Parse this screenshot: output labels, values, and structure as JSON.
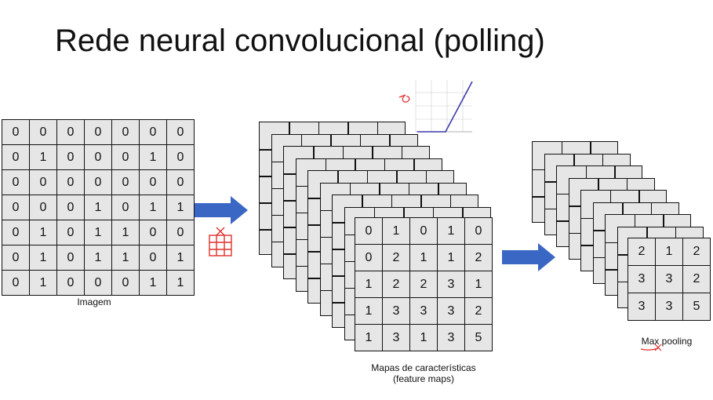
{
  "title": "Rede neural convolucional (polling)",
  "image": {
    "caption": "Imagem",
    "rows": [
      [
        "0",
        "0",
        "0",
        "0",
        "0",
        "0",
        "0"
      ],
      [
        "0",
        "1",
        "0",
        "0",
        "0",
        "1",
        "0"
      ],
      [
        "0",
        "0",
        "0",
        "0",
        "0",
        "0",
        "0"
      ],
      [
        "0",
        "0",
        "0",
        "1",
        "0",
        "1",
        "1"
      ],
      [
        "0",
        "1",
        "0",
        "1",
        "1",
        "0",
        "0"
      ],
      [
        "0",
        "1",
        "0",
        "1",
        "1",
        "0",
        "1"
      ],
      [
        "0",
        "1",
        "0",
        "0",
        "0",
        "1",
        "1"
      ]
    ]
  },
  "feature_maps": {
    "caption_line1": "Mapas de características",
    "caption_line2": "(feature maps)",
    "rows": [
      [
        "0",
        "1",
        "0",
        "1",
        "0"
      ],
      [
        "0",
        "2",
        "1",
        "1",
        "2"
      ],
      [
        "1",
        "2",
        "2",
        "3",
        "1"
      ],
      [
        "1",
        "3",
        "3",
        "3",
        "2"
      ],
      [
        "1",
        "3",
        "1",
        "3",
        "5"
      ]
    ]
  },
  "max_pooling": {
    "caption": "Max pooling",
    "rows": [
      [
        "2",
        "1",
        "2"
      ],
      [
        "3",
        "3",
        "2"
      ],
      [
        "3",
        "3",
        "5"
      ]
    ]
  },
  "colors": {
    "arrow": "#3a67c4",
    "ink": "#e0302a",
    "relu_line": "#3a3aaa"
  }
}
